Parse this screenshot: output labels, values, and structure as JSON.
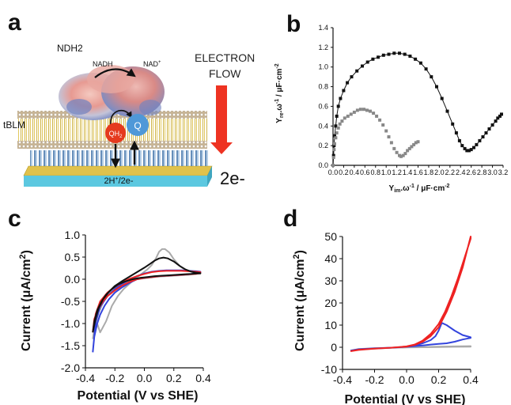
{
  "panels": {
    "a": {
      "letter": "a",
      "labels": {
        "ndh2": "NDH2",
        "nadh": "NADH",
        "nad": "NAD",
        "nad_sup": "+",
        "tblm": "tBLM",
        "qh2": "QH",
        "qh2_sub": "2",
        "q": "Q",
        "protons": "2H",
        "protons_sup": "+",
        "protons_rest": "/2e-",
        "electron": "ELECTRON",
        "flow": "FLOW",
        "two_e": "2e-"
      },
      "colors": {
        "arrow": "#ee3322",
        "qh2": "#e53a1e",
        "q": "#4f98d8"
      }
    },
    "b": {
      "letter": "b",
      "ylabel_parts": [
        "Y",
        "re",
        ".ω",
        "-1",
        " / μF·cm",
        "-2"
      ],
      "xlabel_parts": [
        "Y",
        "im",
        ".ω",
        "-1",
        " / μF·cm",
        "-2"
      ]
    },
    "c": {
      "letter": "c",
      "ylabel_parts": [
        "Current (μA/cm",
        "2",
        ")"
      ],
      "xlabel": "Potential (V vs SHE)"
    },
    "d": {
      "letter": "d",
      "ylabel_parts": [
        "Current (μA/cm",
        "2",
        ")"
      ],
      "xlabel": "Potential (V vs SHE)"
    }
  },
  "chart_data": [
    {
      "id": "b",
      "type": "scatter",
      "xlim": [
        0,
        3.2
      ],
      "ylim": [
        0,
        1.4
      ],
      "xticks": [
        "0.0",
        "0.2",
        "0.4",
        "0.6",
        "0.8",
        "1.0",
        "1.2",
        "1.4",
        "1.6",
        "1.8",
        "2.0",
        "2.2",
        "2.4",
        "2.6",
        "2.8",
        "3.0",
        "3.2"
      ],
      "yticks": [
        "0.0",
        "0.2",
        "0.4",
        "0.6",
        "0.8",
        "1.0",
        "1.2",
        "1.4"
      ],
      "series": [
        {
          "color": "#111111",
          "connected": true,
          "x": [
            0.0,
            0.01,
            0.02,
            0.03,
            0.05,
            0.07,
            0.1,
            0.14,
            0.2,
            0.27,
            0.35,
            0.45,
            0.55,
            0.65,
            0.75,
            0.85,
            0.95,
            1.05,
            1.15,
            1.25,
            1.35,
            1.45,
            1.55,
            1.65,
            1.75,
            1.85,
            1.95,
            2.05,
            2.15,
            2.25,
            2.32,
            2.38,
            2.43,
            2.48,
            2.52,
            2.56,
            2.6,
            2.65,
            2.7,
            2.76,
            2.82,
            2.88,
            2.94,
            3.0,
            3.06,
            3.1,
            3.14,
            3.17
          ],
          "y": [
            0.0,
            0.1,
            0.2,
            0.3,
            0.4,
            0.5,
            0.6,
            0.68,
            0.76,
            0.84,
            0.9,
            0.96,
            1.01,
            1.05,
            1.08,
            1.1,
            1.12,
            1.13,
            1.14,
            1.14,
            1.13,
            1.11,
            1.08,
            1.04,
            0.98,
            0.9,
            0.8,
            0.68,
            0.55,
            0.42,
            0.33,
            0.25,
            0.2,
            0.17,
            0.15,
            0.15,
            0.16,
            0.18,
            0.21,
            0.25,
            0.29,
            0.33,
            0.37,
            0.41,
            0.45,
            0.48,
            0.5,
            0.52
          ]
        },
        {
          "color": "#888888",
          "connected": false,
          "x": [
            0.0,
            0.01,
            0.02,
            0.03,
            0.05,
            0.07,
            0.1,
            0.13,
            0.17,
            0.22,
            0.28,
            0.34,
            0.4,
            0.46,
            0.52,
            0.58,
            0.64,
            0.7,
            0.76,
            0.82,
            0.88,
            0.94,
            1.0,
            1.05,
            1.1,
            1.15,
            1.2,
            1.25,
            1.28,
            1.32,
            1.36,
            1.4,
            1.44,
            1.48,
            1.52,
            1.56,
            1.6
          ],
          "y": [
            0.0,
            0.08,
            0.16,
            0.22,
            0.28,
            0.33,
            0.38,
            0.42,
            0.45,
            0.48,
            0.5,
            0.52,
            0.54,
            0.56,
            0.57,
            0.57,
            0.56,
            0.55,
            0.53,
            0.5,
            0.46,
            0.41,
            0.35,
            0.29,
            0.23,
            0.17,
            0.13,
            0.1,
            0.09,
            0.1,
            0.12,
            0.15,
            0.17,
            0.19,
            0.21,
            0.23,
            0.24
          ]
        }
      ]
    },
    {
      "id": "c",
      "type": "line",
      "xlim": [
        -0.4,
        0.4
      ],
      "ylim": [
        -2.0,
        1.0
      ],
      "xticks": [
        "-0.4",
        "-0.2",
        "0.0",
        "0.2",
        "0.4"
      ],
      "yticks": [
        "-2.0",
        "-1.5",
        "-1.0",
        "-0.5",
        "0.0",
        "0.5",
        "1.0"
      ],
      "series": [
        {
          "color": "#aaaaaa",
          "x": [
            -0.35,
            -0.33,
            -0.31,
            -0.29,
            -0.27,
            -0.25,
            -0.22,
            -0.18,
            -0.12,
            -0.05,
            0.0,
            0.05,
            0.1,
            0.15,
            0.2,
            0.25,
            0.3,
            0.35,
            0.38,
            0.38,
            0.36,
            0.32,
            0.28,
            0.24,
            0.2,
            0.17,
            0.14,
            0.12,
            0.1,
            0.08,
            0.05,
            0.02,
            -0.02,
            -0.06,
            -0.1,
            -0.14,
            -0.18,
            -0.22,
            -0.26,
            -0.3,
            -0.33,
            -0.35
          ],
          "y": [
            -1.35,
            -1.0,
            -0.75,
            -0.6,
            -0.45,
            -0.35,
            -0.25,
            -0.15,
            -0.05,
            0.0,
            0.02,
            0.04,
            0.06,
            0.07,
            0.08,
            0.09,
            0.1,
            0.12,
            0.14,
            0.15,
            0.16,
            0.17,
            0.2,
            0.3,
            0.45,
            0.6,
            0.68,
            0.68,
            0.62,
            0.48,
            0.32,
            0.22,
            0.12,
            0.02,
            -0.1,
            -0.22,
            -0.38,
            -0.6,
            -0.95,
            -1.2,
            -0.9,
            -1.35
          ]
        },
        {
          "color": "#3344dd",
          "x": [
            -0.35,
            -0.34,
            -0.32,
            -0.3,
            -0.27,
            -0.24,
            -0.2,
            -0.15,
            -0.1,
            -0.05,
            0.0,
            0.05,
            0.1,
            0.15,
            0.2,
            0.25,
            0.3,
            0.35,
            0.38,
            0.38,
            0.35,
            0.3,
            0.25,
            0.2,
            0.15,
            0.1,
            0.05,
            0.0,
            -0.05,
            -0.1,
            -0.15,
            -0.2,
            -0.25,
            -0.3,
            -0.33,
            -0.35
          ],
          "y": [
            -1.65,
            -1.3,
            -1.0,
            -0.8,
            -0.6,
            -0.45,
            -0.3,
            -0.18,
            -0.08,
            0.0,
            0.03,
            0.05,
            0.07,
            0.08,
            0.09,
            0.1,
            0.11,
            0.13,
            0.15,
            0.17,
            0.18,
            0.19,
            0.2,
            0.2,
            0.2,
            0.19,
            0.17,
            0.13,
            0.07,
            -0.01,
            -0.1,
            -0.22,
            -0.38,
            -0.62,
            -0.95,
            -1.65
          ]
        },
        {
          "color": "#ee2222",
          "x": [
            -0.35,
            -0.34,
            -0.32,
            -0.3,
            -0.28,
            -0.25,
            -0.2,
            -0.15,
            -0.1,
            -0.05,
            0.0,
            0.05,
            0.1,
            0.15,
            0.2,
            0.25,
            0.3,
            0.35,
            0.38,
            0.38,
            0.35,
            0.3,
            0.25,
            0.2,
            0.15,
            0.1,
            0.05,
            0.0,
            -0.05,
            -0.1,
            -0.15,
            -0.2,
            -0.25,
            -0.3,
            -0.33,
            -0.35
          ],
          "y": [
            -1.2,
            -0.9,
            -0.72,
            -0.6,
            -0.5,
            -0.38,
            -0.25,
            -0.14,
            -0.06,
            0.0,
            0.03,
            0.05,
            0.07,
            0.08,
            0.09,
            0.1,
            0.11,
            0.12,
            0.14,
            0.16,
            0.17,
            0.18,
            0.19,
            0.19,
            0.19,
            0.18,
            0.16,
            0.12,
            0.07,
            0.01,
            -0.07,
            -0.17,
            -0.3,
            -0.5,
            -0.78,
            -1.2
          ]
        },
        {
          "color": "#111111",
          "x": [
            -0.35,
            -0.34,
            -0.32,
            -0.29,
            -0.26,
            -0.22,
            -0.18,
            -0.13,
            -0.08,
            -0.03,
            0.02,
            0.07,
            0.12,
            0.17,
            0.22,
            0.27,
            0.32,
            0.36,
            0.38,
            0.38,
            0.35,
            0.32,
            0.28,
            0.24,
            0.2,
            0.16,
            0.13,
            0.1,
            0.07,
            0.04,
            0.0,
            -0.05,
            -0.1,
            -0.15,
            -0.2,
            -0.24,
            -0.28,
            -0.31,
            -0.33,
            -0.35
          ],
          "y": [
            -1.2,
            -0.95,
            -0.7,
            -0.5,
            -0.35,
            -0.22,
            -0.12,
            -0.05,
            0.0,
            0.03,
            0.05,
            0.07,
            0.08,
            0.09,
            0.1,
            0.11,
            0.12,
            0.13,
            0.13,
            0.14,
            0.15,
            0.17,
            0.22,
            0.3,
            0.4,
            0.47,
            0.49,
            0.47,
            0.42,
            0.35,
            0.26,
            0.16,
            0.06,
            -0.04,
            -0.15,
            -0.28,
            -0.45,
            -0.65,
            -0.88,
            -1.2
          ]
        }
      ]
    },
    {
      "id": "d",
      "type": "line",
      "xlim": [
        -0.4,
        0.4
      ],
      "ylim": [
        -10,
        50
      ],
      "xticks": [
        "-0.4",
        "-0.2",
        "0.0",
        "0.2",
        "0.4"
      ],
      "yticks": [
        "-10",
        "0",
        "10",
        "20",
        "30",
        "40",
        "50"
      ],
      "series": [
        {
          "color": "#aaaaaa",
          "x": [
            -0.35,
            -0.3,
            -0.2,
            -0.1,
            0.0,
            0.1,
            0.2,
            0.3,
            0.4,
            0.4,
            0.3,
            0.2,
            0.1,
            0.0,
            -0.1,
            -0.2,
            -0.3,
            -0.35
          ],
          "y": [
            -1.5,
            -1.0,
            -0.6,
            -0.3,
            -0.1,
            0.0,
            0.1,
            0.2,
            0.3,
            0.5,
            0.4,
            0.3,
            0.1,
            0.0,
            -0.2,
            -0.4,
            -0.8,
            -1.5
          ]
        },
        {
          "color": "#3344dd",
          "x": [
            -0.35,
            -0.3,
            -0.2,
            -0.1,
            0.0,
            0.05,
            0.1,
            0.15,
            0.18,
            0.2,
            0.22,
            0.25,
            0.3,
            0.35,
            0.4,
            0.4,
            0.35,
            0.3,
            0.25,
            0.2,
            0.15,
            0.1,
            0.05,
            0.0,
            -0.1,
            -0.2,
            -0.3,
            -0.35
          ],
          "y": [
            -1.5,
            -1.0,
            -0.5,
            -0.2,
            0.2,
            0.8,
            1.8,
            3.2,
            5.0,
            7.5,
            11.0,
            10.0,
            7.5,
            5.5,
            4.5,
            4.2,
            3.5,
            2.5,
            1.8,
            1.5,
            1.2,
            0.8,
            0.5,
            0.2,
            -0.2,
            -0.5,
            -0.9,
            -1.5
          ]
        },
        {
          "color": "#ee2222",
          "x": [
            -0.35,
            -0.3,
            -0.2,
            -0.1,
            0.0,
            0.05,
            0.1,
            0.15,
            0.2,
            0.25,
            0.3,
            0.35,
            0.4,
            0.4,
            0.36,
            0.32,
            0.28,
            0.24,
            0.2,
            0.15,
            0.1,
            0.05,
            0.0,
            -0.1,
            -0.2,
            -0.3,
            -0.35
          ],
          "y": [
            -1.8,
            -1.2,
            -0.6,
            -0.2,
            0.3,
            1.0,
            2.5,
            5.0,
            9.0,
            16.0,
            25.0,
            36.0,
            50.0,
            49.0,
            40.0,
            31.0,
            23.0,
            16.0,
            10.5,
            6.0,
            3.0,
            1.2,
            0.4,
            -0.2,
            -0.6,
            -1.1,
            -1.8
          ]
        }
      ]
    }
  ]
}
